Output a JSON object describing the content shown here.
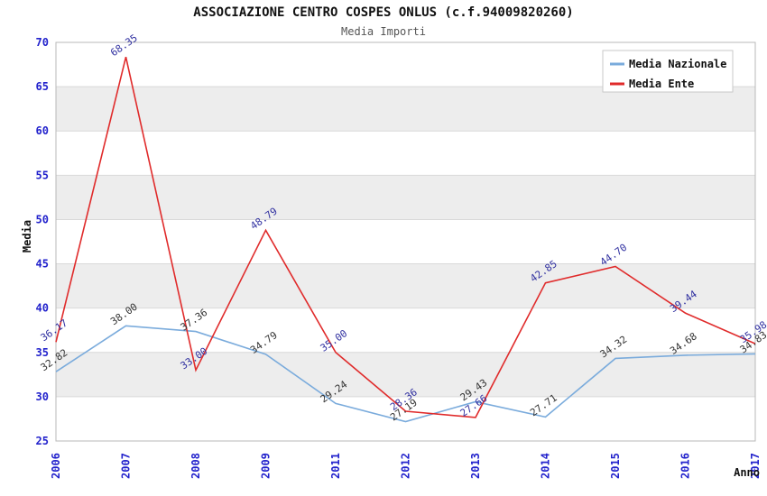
{
  "chart_data": {
    "type": "line",
    "title": "ASSOCIAZIONE CENTRO COSPES ONLUS (c.f.94009820260)",
    "subtitle": "Media Importi",
    "xlabel": "Anno",
    "ylabel": "Media",
    "categories": [
      "2006",
      "2007",
      "2008",
      "2009",
      "2011",
      "2012",
      "2013",
      "2014",
      "2015",
      "2016",
      "2017"
    ],
    "series": [
      {
        "name": "Media Nazionale",
        "color": "#7aabdc",
        "label_color": "#333333",
        "values": [
          32.82,
          38.0,
          37.36,
          34.79,
          29.24,
          27.19,
          29.43,
          27.71,
          34.32,
          34.68,
          34.83
        ]
      },
      {
        "name": "Media Ente",
        "color": "#e02b2b",
        "label_color": "#3030a0",
        "values": [
          36.17,
          68.35,
          33.0,
          48.79,
          35.0,
          28.36,
          27.66,
          42.85,
          44.7,
          39.44,
          35.98
        ]
      }
    ],
    "ylim": [
      25,
      70
    ],
    "ytick_step": 5,
    "yticks": [
      25,
      30,
      35,
      40,
      45,
      50,
      55,
      60,
      65,
      70
    ],
    "grid": true,
    "legend_position": "top-right",
    "tick_color": "#2222cc",
    "band_color": "#ededed",
    "grid_color": "#d9d9d9",
    "border_color": "#b8b8b8",
    "label_rotation_deg": -35
  }
}
